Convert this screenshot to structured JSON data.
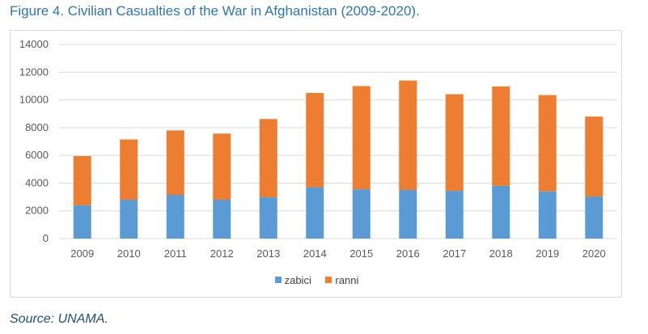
{
  "figure": {
    "title": "Figure 4. Civilian Casualties of the War in Afghanistan (2009-2020).",
    "source": "Source: UNAMA."
  },
  "colors": {
    "title": "#2e75b6",
    "source": "#1f4e79",
    "zabici": "#5b9bd5",
    "ranni": "#ed7d31",
    "gridline": "#d9d9d9",
    "axis_text": "#595959"
  },
  "chart_data": {
    "type": "bar",
    "stacked": true,
    "title": "",
    "xlabel": "",
    "ylabel": "",
    "categories": [
      "2009",
      "2010",
      "2011",
      "2012",
      "2013",
      "2014",
      "2015",
      "2016",
      "2017",
      "2018",
      "2019",
      "2020"
    ],
    "series": [
      {
        "name": "zabici",
        "values": [
          2400,
          2800,
          3150,
          2800,
          2970,
          3700,
          3550,
          3500,
          3440,
          3800,
          3400,
          3030
        ]
      },
      {
        "name": "ranni",
        "values": [
          3550,
          4350,
          4650,
          4770,
          5650,
          6800,
          7450,
          7900,
          6970,
          7170,
          6950,
          5770
        ]
      }
    ],
    "ylim": [
      0,
      14000
    ],
    "yticks": [
      0,
      2000,
      4000,
      6000,
      8000,
      10000,
      12000,
      14000
    ],
    "grid": true,
    "legend_position": "bottom"
  }
}
